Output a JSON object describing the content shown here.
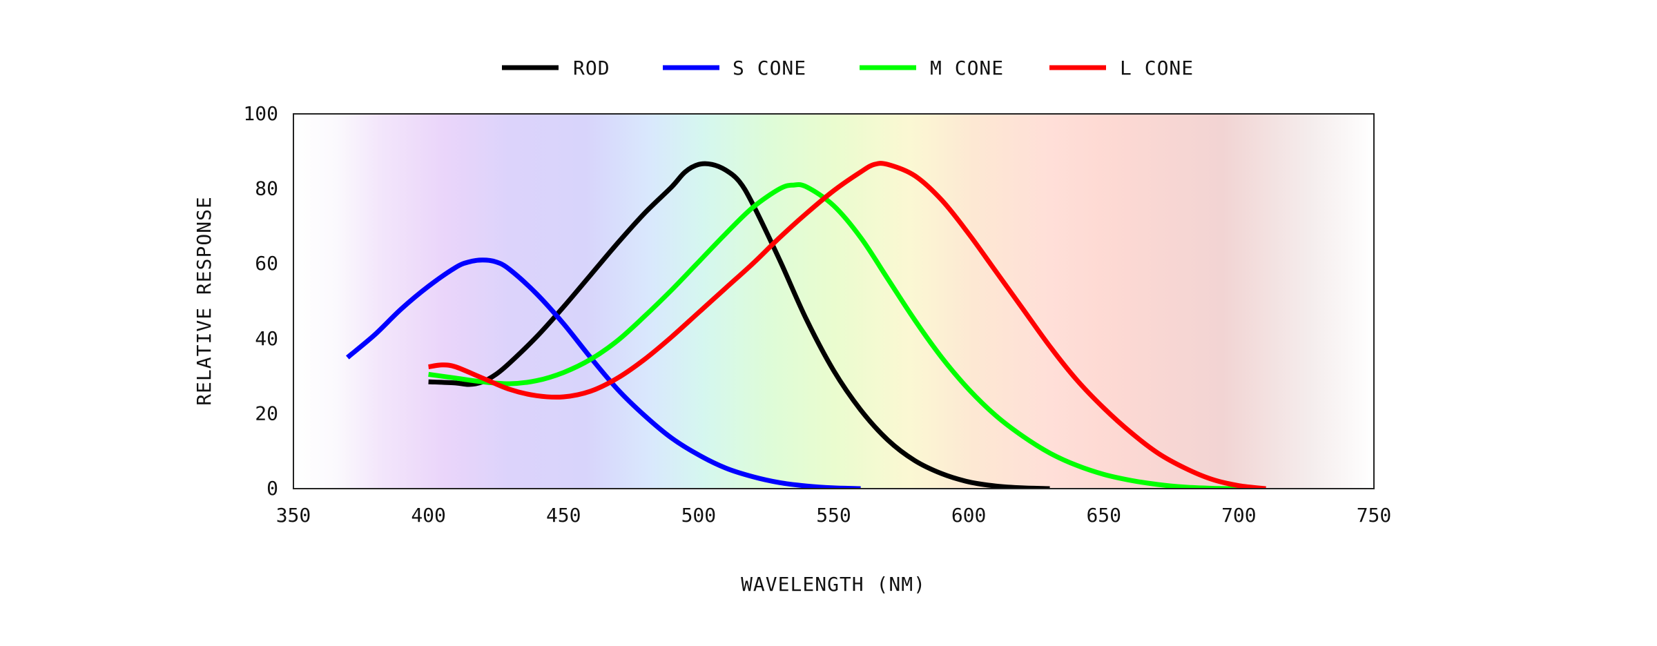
{
  "chart_data": {
    "type": "line",
    "title": "",
    "xlabel": "WAVELENGTH (NM)",
    "ylabel": "RELATIVE RESPONSE",
    "xlim": [
      350,
      750
    ],
    "ylim": [
      0,
      100
    ],
    "xticks": [
      350,
      400,
      450,
      500,
      550,
      600,
      650,
      700,
      750
    ],
    "yticks": [
      0,
      20,
      40,
      60,
      80,
      100
    ],
    "grid": false,
    "legend_position": "top",
    "background": "visible-spectrum gradient",
    "series": [
      {
        "name": "ROD",
        "color": "#000000",
        "points": [
          [
            400,
            28.5
          ],
          [
            410,
            28.2
          ],
          [
            415,
            27.8
          ],
          [
            420,
            28.5
          ],
          [
            425,
            30.5
          ],
          [
            430,
            33.5
          ],
          [
            440,
            40.5
          ],
          [
            450,
            48.5
          ],
          [
            460,
            57
          ],
          [
            470,
            65.5
          ],
          [
            480,
            73.5
          ],
          [
            490,
            80.5
          ],
          [
            495,
            84.5
          ],
          [
            500,
            86.5
          ],
          [
            505,
            86.5
          ],
          [
            510,
            85
          ],
          [
            515,
            82
          ],
          [
            520,
            76
          ],
          [
            530,
            61
          ],
          [
            540,
            45
          ],
          [
            550,
            31.5
          ],
          [
            560,
            21
          ],
          [
            570,
            13
          ],
          [
            580,
            7.5
          ],
          [
            590,
            4
          ],
          [
            600,
            1.8
          ],
          [
            610,
            0.7
          ],
          [
            620,
            0.2
          ],
          [
            630,
            0
          ]
        ]
      },
      {
        "name": "S CONE",
        "color": "#0000ff",
        "points": [
          [
            370,
            35
          ],
          [
            380,
            41
          ],
          [
            390,
            48
          ],
          [
            400,
            54
          ],
          [
            410,
            59
          ],
          [
            415,
            60.5
          ],
          [
            420,
            61
          ],
          [
            425,
            60.5
          ],
          [
            430,
            58.5
          ],
          [
            440,
            52
          ],
          [
            450,
            44
          ],
          [
            460,
            35
          ],
          [
            470,
            26.5
          ],
          [
            480,
            19.5
          ],
          [
            490,
            13.5
          ],
          [
            500,
            9
          ],
          [
            510,
            5.5
          ],
          [
            520,
            3.2
          ],
          [
            530,
            1.6
          ],
          [
            540,
            0.7
          ],
          [
            550,
            0.2
          ],
          [
            560,
            0
          ]
        ]
      },
      {
        "name": "M CONE",
        "color": "#00ff00",
        "points": [
          [
            400,
            30.5
          ],
          [
            410,
            29.5
          ],
          [
            420,
            28.5
          ],
          [
            430,
            28
          ],
          [
            440,
            28.8
          ],
          [
            450,
            31
          ],
          [
            460,
            34.5
          ],
          [
            470,
            39.5
          ],
          [
            480,
            46
          ],
          [
            490,
            53
          ],
          [
            500,
            60.5
          ],
          [
            510,
            68
          ],
          [
            520,
            75
          ],
          [
            530,
            80
          ],
          [
            535,
            81
          ],
          [
            540,
            80.5
          ],
          [
            550,
            75.5
          ],
          [
            560,
            67
          ],
          [
            570,
            56
          ],
          [
            580,
            45
          ],
          [
            590,
            35
          ],
          [
            600,
            26.5
          ],
          [
            610,
            19.5
          ],
          [
            620,
            14
          ],
          [
            630,
            9.5
          ],
          [
            640,
            6.2
          ],
          [
            650,
            3.8
          ],
          [
            660,
            2.2
          ],
          [
            670,
            1.1
          ],
          [
            680,
            0.4
          ],
          [
            690,
            0.1
          ],
          [
            700,
            0
          ]
        ]
      },
      {
        "name": "L CONE",
        "color": "#ff0000",
        "points": [
          [
            400,
            32.5
          ],
          [
            405,
            33
          ],
          [
            410,
            32.5
          ],
          [
            420,
            29.5
          ],
          [
            430,
            26.5
          ],
          [
            440,
            24.8
          ],
          [
            450,
            24.5
          ],
          [
            460,
            26
          ],
          [
            470,
            29.5
          ],
          [
            480,
            34.5
          ],
          [
            490,
            40.5
          ],
          [
            500,
            47
          ],
          [
            510,
            53.5
          ],
          [
            520,
            60
          ],
          [
            530,
            67
          ],
          [
            540,
            73.5
          ],
          [
            550,
            79.5
          ],
          [
            560,
            84.5
          ],
          [
            565,
            86.5
          ],
          [
            570,
            86.5
          ],
          [
            580,
            83.5
          ],
          [
            590,
            77
          ],
          [
            600,
            68
          ],
          [
            610,
            58
          ],
          [
            620,
            48
          ],
          [
            630,
            38
          ],
          [
            640,
            29
          ],
          [
            650,
            21.5
          ],
          [
            660,
            15
          ],
          [
            670,
            9.5
          ],
          [
            680,
            5.5
          ],
          [
            690,
            2.5
          ],
          [
            700,
            0.8
          ],
          [
            710,
            0
          ]
        ]
      }
    ]
  }
}
